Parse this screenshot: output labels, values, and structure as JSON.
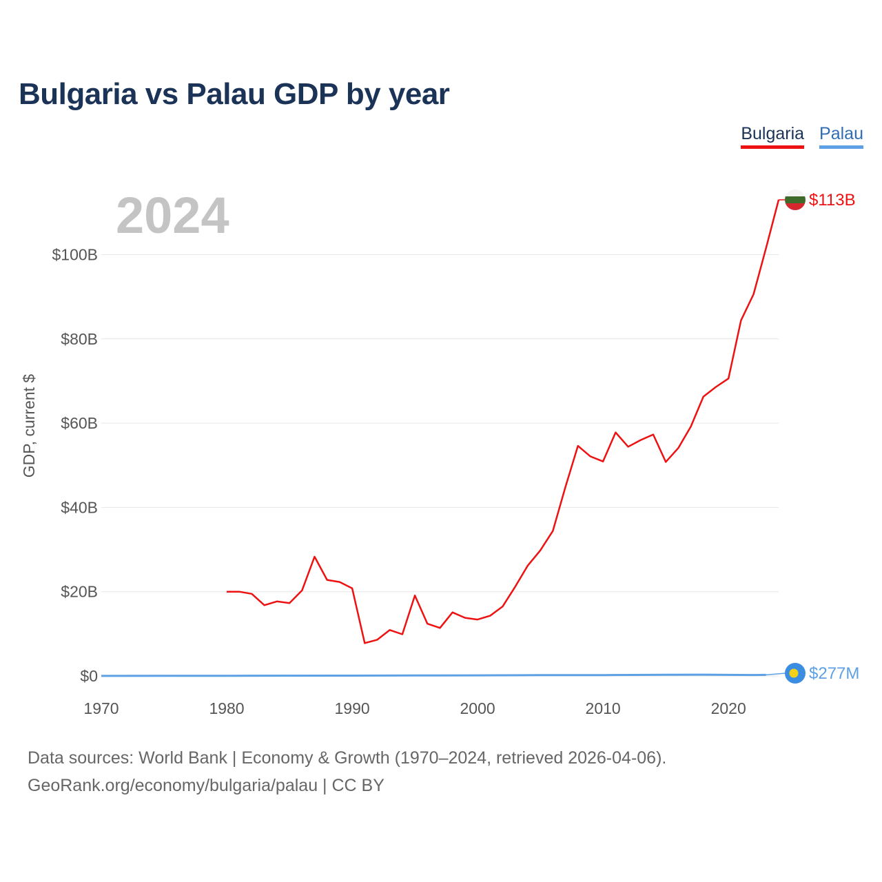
{
  "header": {
    "title": "Bulgaria vs Palau GDP by year"
  },
  "legend": {
    "bulgaria_label": "Bulgaria",
    "palau_label": "Palau"
  },
  "year_watermark": "2024",
  "end_labels": {
    "bulgaria": "$113B",
    "palau": "$277M"
  },
  "colors": {
    "bulgaria": "#ee1111",
    "palau": "#5ea0e6",
    "grid": "#e6e6e6",
    "text": "#555555"
  },
  "footer": {
    "sources_line": "Data sources: World Bank | Economy & Growth (1970–2024, retrieved 2026-04-06).",
    "site_link": "GeoRank.org/economy/bulgaria/palau",
    "license": " | CC BY"
  },
  "chart_data": {
    "type": "line",
    "title": "Bulgaria vs Palau GDP by year",
    "xlabel": "",
    "ylabel": "GDP, current $",
    "xlim": [
      1970,
      2024
    ],
    "ylim": [
      0,
      113
    ],
    "unit": "billion USD",
    "x_ticks": [
      1970,
      1980,
      1990,
      2000,
      2010,
      2020
    ],
    "y_ticks": [
      0,
      20,
      40,
      60,
      80,
      100
    ],
    "y_tick_labels": [
      "$0",
      "$20B",
      "$40B",
      "$60B",
      "$80B",
      "$100B"
    ],
    "grid": true,
    "legend_position": "top-right",
    "series": [
      {
        "name": "Bulgaria",
        "x": [
          1980,
          1981,
          1982,
          1983,
          1984,
          1985,
          1986,
          1987,
          1988,
          1989,
          1990,
          1991,
          1992,
          1993,
          1994,
          1995,
          1996,
          1997,
          1998,
          1999,
          2000,
          2001,
          2002,
          2003,
          2004,
          2005,
          2006,
          2007,
          2008,
          2009,
          2010,
          2011,
          2012,
          2013,
          2014,
          2015,
          2016,
          2017,
          2018,
          2019,
          2020,
          2021,
          2022,
          2023,
          2024
        ],
        "values": [
          20.0,
          20.0,
          19.5,
          16.8,
          17.7,
          17.3,
          20.3,
          28.3,
          22.8,
          22.3,
          20.8,
          7.8,
          8.6,
          10.9,
          9.9,
          19.1,
          12.4,
          11.4,
          15.1,
          13.8,
          13.4,
          14.3,
          16.5,
          21.2,
          26.2,
          29.8,
          34.4,
          44.8,
          54.6,
          52.1,
          50.9,
          57.8,
          54.4,
          56.0,
          57.3,
          50.8,
          54.1,
          59.2,
          66.3,
          68.6,
          70.6,
          84.4,
          90.6,
          101.6,
          113.0
        ]
      },
      {
        "name": "Palau",
        "x": [
          1970,
          1980,
          1990,
          1995,
          2000,
          2005,
          2010,
          2015,
          2018,
          2020,
          2022,
          2023
        ],
        "values": [
          0.02,
          0.05,
          0.08,
          0.12,
          0.15,
          0.19,
          0.21,
          0.28,
          0.31,
          0.26,
          0.23,
          0.26
        ]
      }
    ]
  }
}
